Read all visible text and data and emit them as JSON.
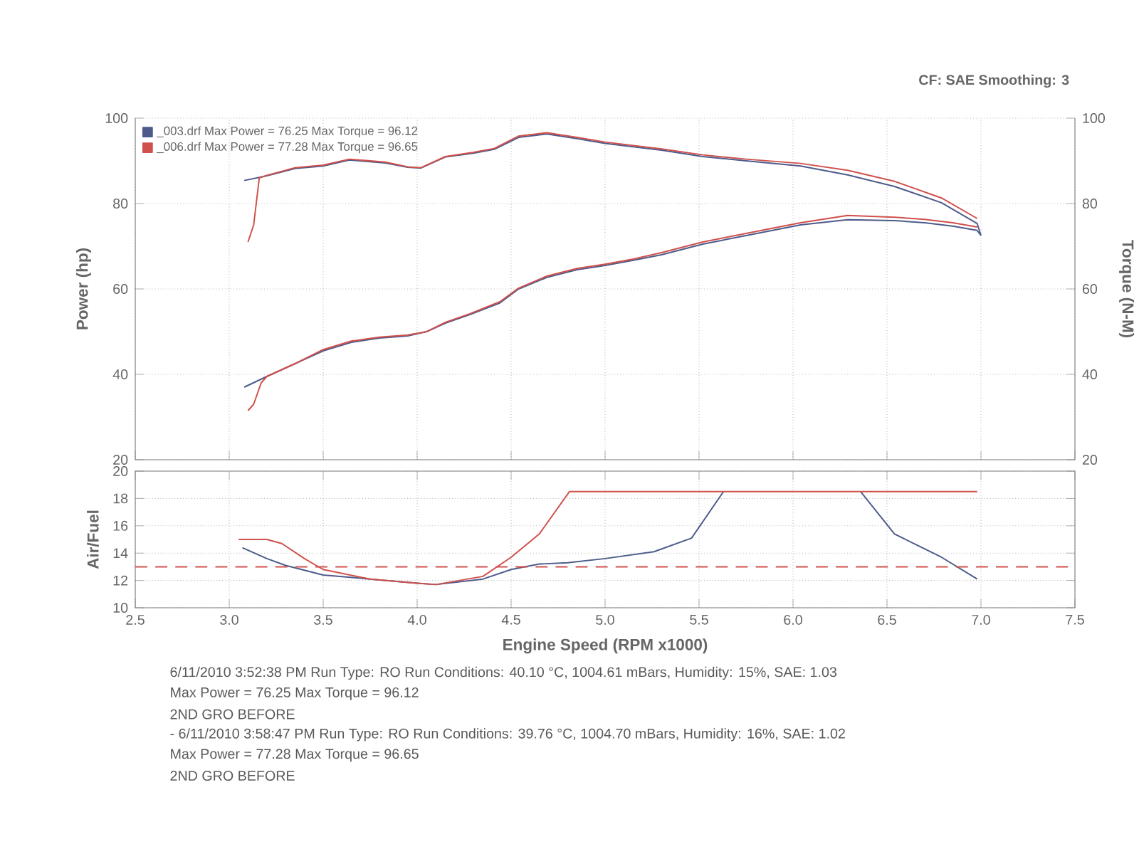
{
  "chart_data": [
    {
      "type": "line",
      "xlim": [
        2.5,
        7.5
      ],
      "xticks": [
        2.5,
        3,
        3.5,
        4,
        4.5,
        5,
        5.5,
        6,
        6.5,
        7,
        7.5
      ],
      "ylim": [
        20,
        100
      ],
      "yticks": [
        20,
        40,
        60,
        80,
        100
      ],
      "y2lim": [
        20,
        100
      ],
      "y2ticks": [
        20,
        40,
        60,
        80,
        100
      ],
      "ylabel": "Power (hp)",
      "y2label": "Torque (N-M)",
      "tick_labels": "y",
      "grid": true,
      "legend": "top left",
      "annotations": [
        "CF: SAE  Smoothing: 3"
      ],
      "series": [
        {
          "name": "_003.drf Max Power = 76.25    Max Torque = 96.12",
          "color": "#4c5b8a",
          "x": [
            3.08,
            3.2,
            3.35,
            3.5,
            3.65,
            3.8,
            3.95,
            4.05,
            4.15,
            4.28,
            4.44,
            4.54,
            4.69,
            4.85,
            5.0,
            5.15,
            5.3,
            5.52,
            5.75,
            6.04,
            6.29,
            6.54,
            6.7,
            6.85,
            6.98,
            7.0
          ],
          "values": [
            37,
            39.5,
            42.5,
            45.5,
            47.5,
            48.5,
            49,
            50,
            52,
            54,
            56.7,
            60,
            62.7,
            64.5,
            65.5,
            66.7,
            68,
            70.5,
            72.5,
            75,
            76.2,
            76,
            75.5,
            74.7,
            73.7,
            72.5
          ]
        },
        {
          "color": "#4c5b8a",
          "axis": "y2",
          "x": [
            3.08,
            3.2,
            3.35,
            3.5,
            3.64,
            3.83,
            3.95,
            4.02,
            4.15,
            4.3,
            4.41,
            4.54,
            4.69,
            4.85,
            5.0,
            5.15,
            5.3,
            5.52,
            5.75,
            6.04,
            6.29,
            6.54,
            6.79,
            6.98,
            7.0
          ],
          "values": [
            85.4,
            86.5,
            88.2,
            88.8,
            90.2,
            89.5,
            88.5,
            88.3,
            90.9,
            91.8,
            92.7,
            95.5,
            96.3,
            95.2,
            94.1,
            93.3,
            92.5,
            91,
            90,
            88.8,
            86.7,
            84,
            80.2,
            75.3,
            72.5
          ]
        },
        {
          "name": "_006.drf Max Power = 77.28    Max Torque = 96.65",
          "color": "#d0504c",
          "x": [
            3.1,
            3.13,
            3.17,
            3.2,
            3.35,
            3.5,
            3.65,
            3.8,
            3.95,
            4.05,
            4.15,
            4.28,
            4.44,
            4.54,
            4.69,
            4.85,
            5.0,
            5.15,
            5.3,
            5.52,
            5.75,
            6.04,
            6.29,
            6.54,
            6.7,
            6.85,
            6.98
          ],
          "values": [
            31.5,
            33,
            38,
            39.5,
            42.5,
            45.8,
            47.8,
            48.7,
            49.2,
            50,
            52.2,
            54.2,
            57,
            60.2,
            63,
            64.8,
            65.8,
            67,
            68.5,
            71,
            73,
            75.5,
            77.2,
            76.8,
            76.3,
            75.5,
            74.5
          ]
        },
        {
          "color": "#d0504c",
          "axis": "y2",
          "x": [
            3.1,
            3.13,
            3.16,
            3.2,
            3.35,
            3.5,
            3.64,
            3.83,
            3.95,
            4.02,
            4.15,
            4.3,
            4.41,
            4.54,
            4.69,
            4.85,
            5.0,
            5.15,
            5.3,
            5.52,
            5.75,
            6.04,
            6.29,
            6.54,
            6.79,
            6.98
          ],
          "values": [
            71,
            75,
            86,
            86.6,
            88.4,
            89,
            90.4,
            89.7,
            88.6,
            88.4,
            91,
            92,
            92.9,
            95.8,
            96.6,
            95.5,
            94.4,
            93.6,
            92.8,
            91.4,
            90.4,
            89.4,
            87.8,
            85.2,
            81.3,
            76.5
          ]
        }
      ]
    },
    {
      "type": "line",
      "xlim": [
        2.5,
        7.5
      ],
      "xticks": [
        2.5,
        {
          "value": 3,
          "label": "3.0"
        },
        3.5,
        {
          "value": 4,
          "label": "4.0"
        },
        4.5,
        {
          "value": 5,
          "label": "5.0"
        },
        5.5,
        {
          "value": 6,
          "label": "6.0"
        },
        6.5,
        {
          "value": 7,
          "label": "7.0"
        },
        7.5
      ],
      "ylim": [
        10,
        20
      ],
      "yticks": [
        10,
        12,
        14,
        16,
        18,
        20
      ],
      "xlabel": "Engine Speed (RPM x1000)",
      "ylabel": "Air/Fuel",
      "grid": true,
      "ref_lines": [
        {
          "axis": "y",
          "value": 13,
          "color": "#d0504c",
          "line_style": "dashed"
        }
      ],
      "annotations": [
        "6/11/2010 3:52:38 PM  Run Type: RO  Run Conditions: 40.10 °C, 1004.61 mBars,  Humidity: 15%, SAE: 1.03",
        "Max Power = 76.25  Max Torque = 96.12",
        "2ND GRO BEFORE",
        "- 6/11/2010 3:58:47 PM  Run Type: RO  Run Conditions: 39.76 °C, 1004.70 mBars,  Humidity: 16%, SAE: 1.02",
        "Max Power = 77.28  Max Torque = 96.65",
        "2ND GRO BEFORE"
      ],
      "series": [
        {
          "color": "#4c5b8a",
          "x": [
            3.07,
            3.2,
            3.3,
            3.5,
            3.75,
            4.0,
            4.1,
            4.35,
            4.5,
            4.65,
            4.8,
            5.0,
            5.26,
            5.46,
            5.63,
            6.0,
            6.36,
            6.54,
            6.79,
            6.98
          ],
          "values": [
            14.4,
            13.6,
            13.1,
            12.4,
            12.1,
            11.8,
            11.7,
            12.1,
            12.8,
            13.2,
            13.3,
            13.6,
            14.1,
            15.1,
            18.5,
            null,
            18.5,
            15.4,
            13.7,
            12.1
          ]
        },
        {
          "color": "#d0504c",
          "x": [
            3.05,
            3.2,
            3.28,
            3.4,
            3.5,
            3.75,
            4.0,
            4.1,
            4.35,
            4.5,
            4.65,
            4.81,
            6.98
          ],
          "values": [
            15.0,
            15.0,
            14.7,
            13.6,
            12.8,
            12.1,
            11.8,
            11.7,
            12.3,
            13.7,
            15.4,
            18.5,
            18.5
          ]
        }
      ]
    }
  ]
}
